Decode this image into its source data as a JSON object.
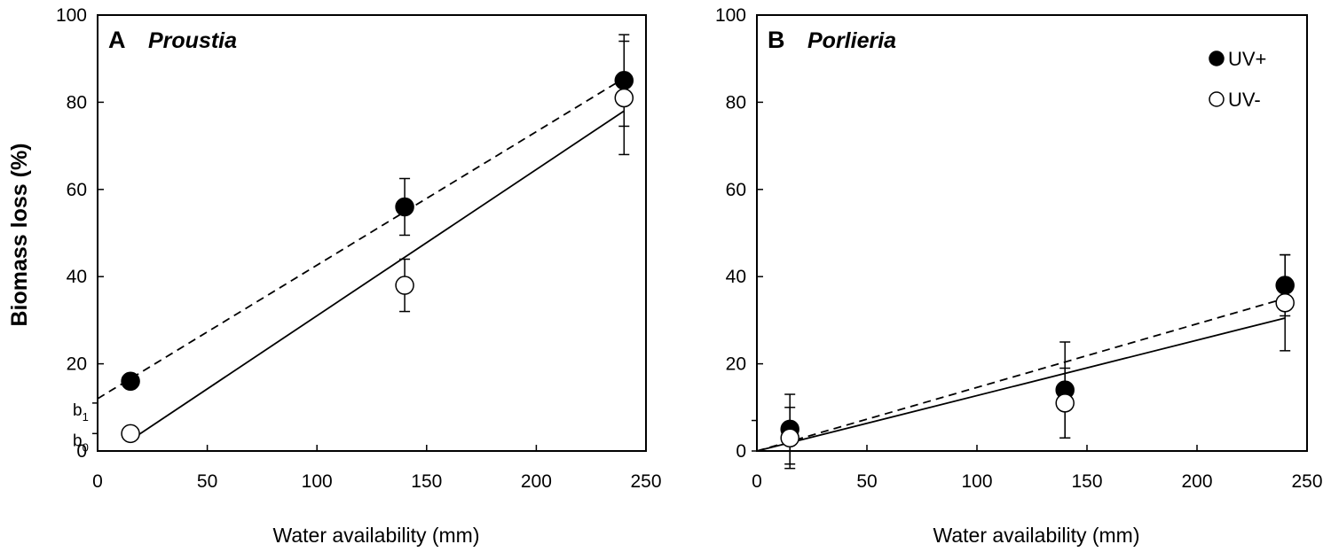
{
  "chart_data": {
    "type": "scatter",
    "ylabel": "Biomass loss (%)",
    "panels": [
      {
        "letter": "A",
        "species": "Proustia",
        "xlabel": "Water availability (mm)",
        "xlim": [
          0,
          250
        ],
        "ylim": [
          0,
          100
        ],
        "xticks": [
          "0",
          "50",
          "100",
          "150",
          "200",
          "250"
        ],
        "yticks": [
          "0",
          "20",
          "40",
          "60",
          "80",
          "100"
        ],
        "intercept_labels": [
          {
            "base": "b",
            "sub": "1",
            "value": 11
          },
          {
            "base": "b",
            "sub": "0",
            "value": 4
          }
        ],
        "series": [
          {
            "name": "UV+",
            "marker": "filled",
            "points": [
              {
                "x": 15,
                "y": 16,
                "err": 0
              },
              {
                "x": 140,
                "y": 56,
                "err": 6.5
              },
              {
                "x": 240,
                "y": 85,
                "err": 10.5
              }
            ],
            "fit": {
              "style": "dashed",
              "x": [
                0,
                240
              ],
              "y": [
                12,
                85.5
              ]
            }
          },
          {
            "name": "UV-",
            "marker": "open",
            "points": [
              {
                "x": 15,
                "y": 4,
                "err": 0
              },
              {
                "x": 140,
                "y": 38,
                "err": 6
              },
              {
                "x": 240,
                "y": 81,
                "err": 13
              }
            ],
            "fit": {
              "style": "solid",
              "x": [
                15,
                240
              ],
              "y": [
                2.5,
                78
              ]
            }
          }
        ]
      },
      {
        "letter": "B",
        "species": "Porlieria",
        "xlabel": "Water availability (mm)",
        "xlim": [
          0,
          250
        ],
        "ylim": [
          0,
          100
        ],
        "xticks": [
          "0",
          "50",
          "100",
          "150",
          "200",
          "250"
        ],
        "yticks": [
          "0",
          "20",
          "40",
          "60",
          "80",
          "100"
        ],
        "legend": [
          {
            "label": "UV+",
            "marker": "filled"
          },
          {
            "label": "UV-",
            "marker": "open"
          }
        ],
        "series": [
          {
            "name": "UV+",
            "marker": "filled",
            "points": [
              {
                "x": 15,
                "y": 5,
                "err": 8
              },
              {
                "x": 140,
                "y": 14,
                "err": 11
              },
              {
                "x": 240,
                "y": 38,
                "err": 7
              }
            ],
            "fit": {
              "style": "dashed",
              "x": [
                0,
                240
              ],
              "y": [
                0,
                35
              ]
            }
          },
          {
            "name": "UV-",
            "marker": "open",
            "points": [
              {
                "x": 15,
                "y": 3,
                "err": 7
              },
              {
                "x": 140,
                "y": 11,
                "err": 8
              },
              {
                "x": 240,
                "y": 34,
                "err": 11
              }
            ],
            "fit": {
              "style": "solid",
              "x": [
                0,
                240
              ],
              "y": [
                0,
                30.5
              ]
            }
          }
        ]
      }
    ]
  }
}
